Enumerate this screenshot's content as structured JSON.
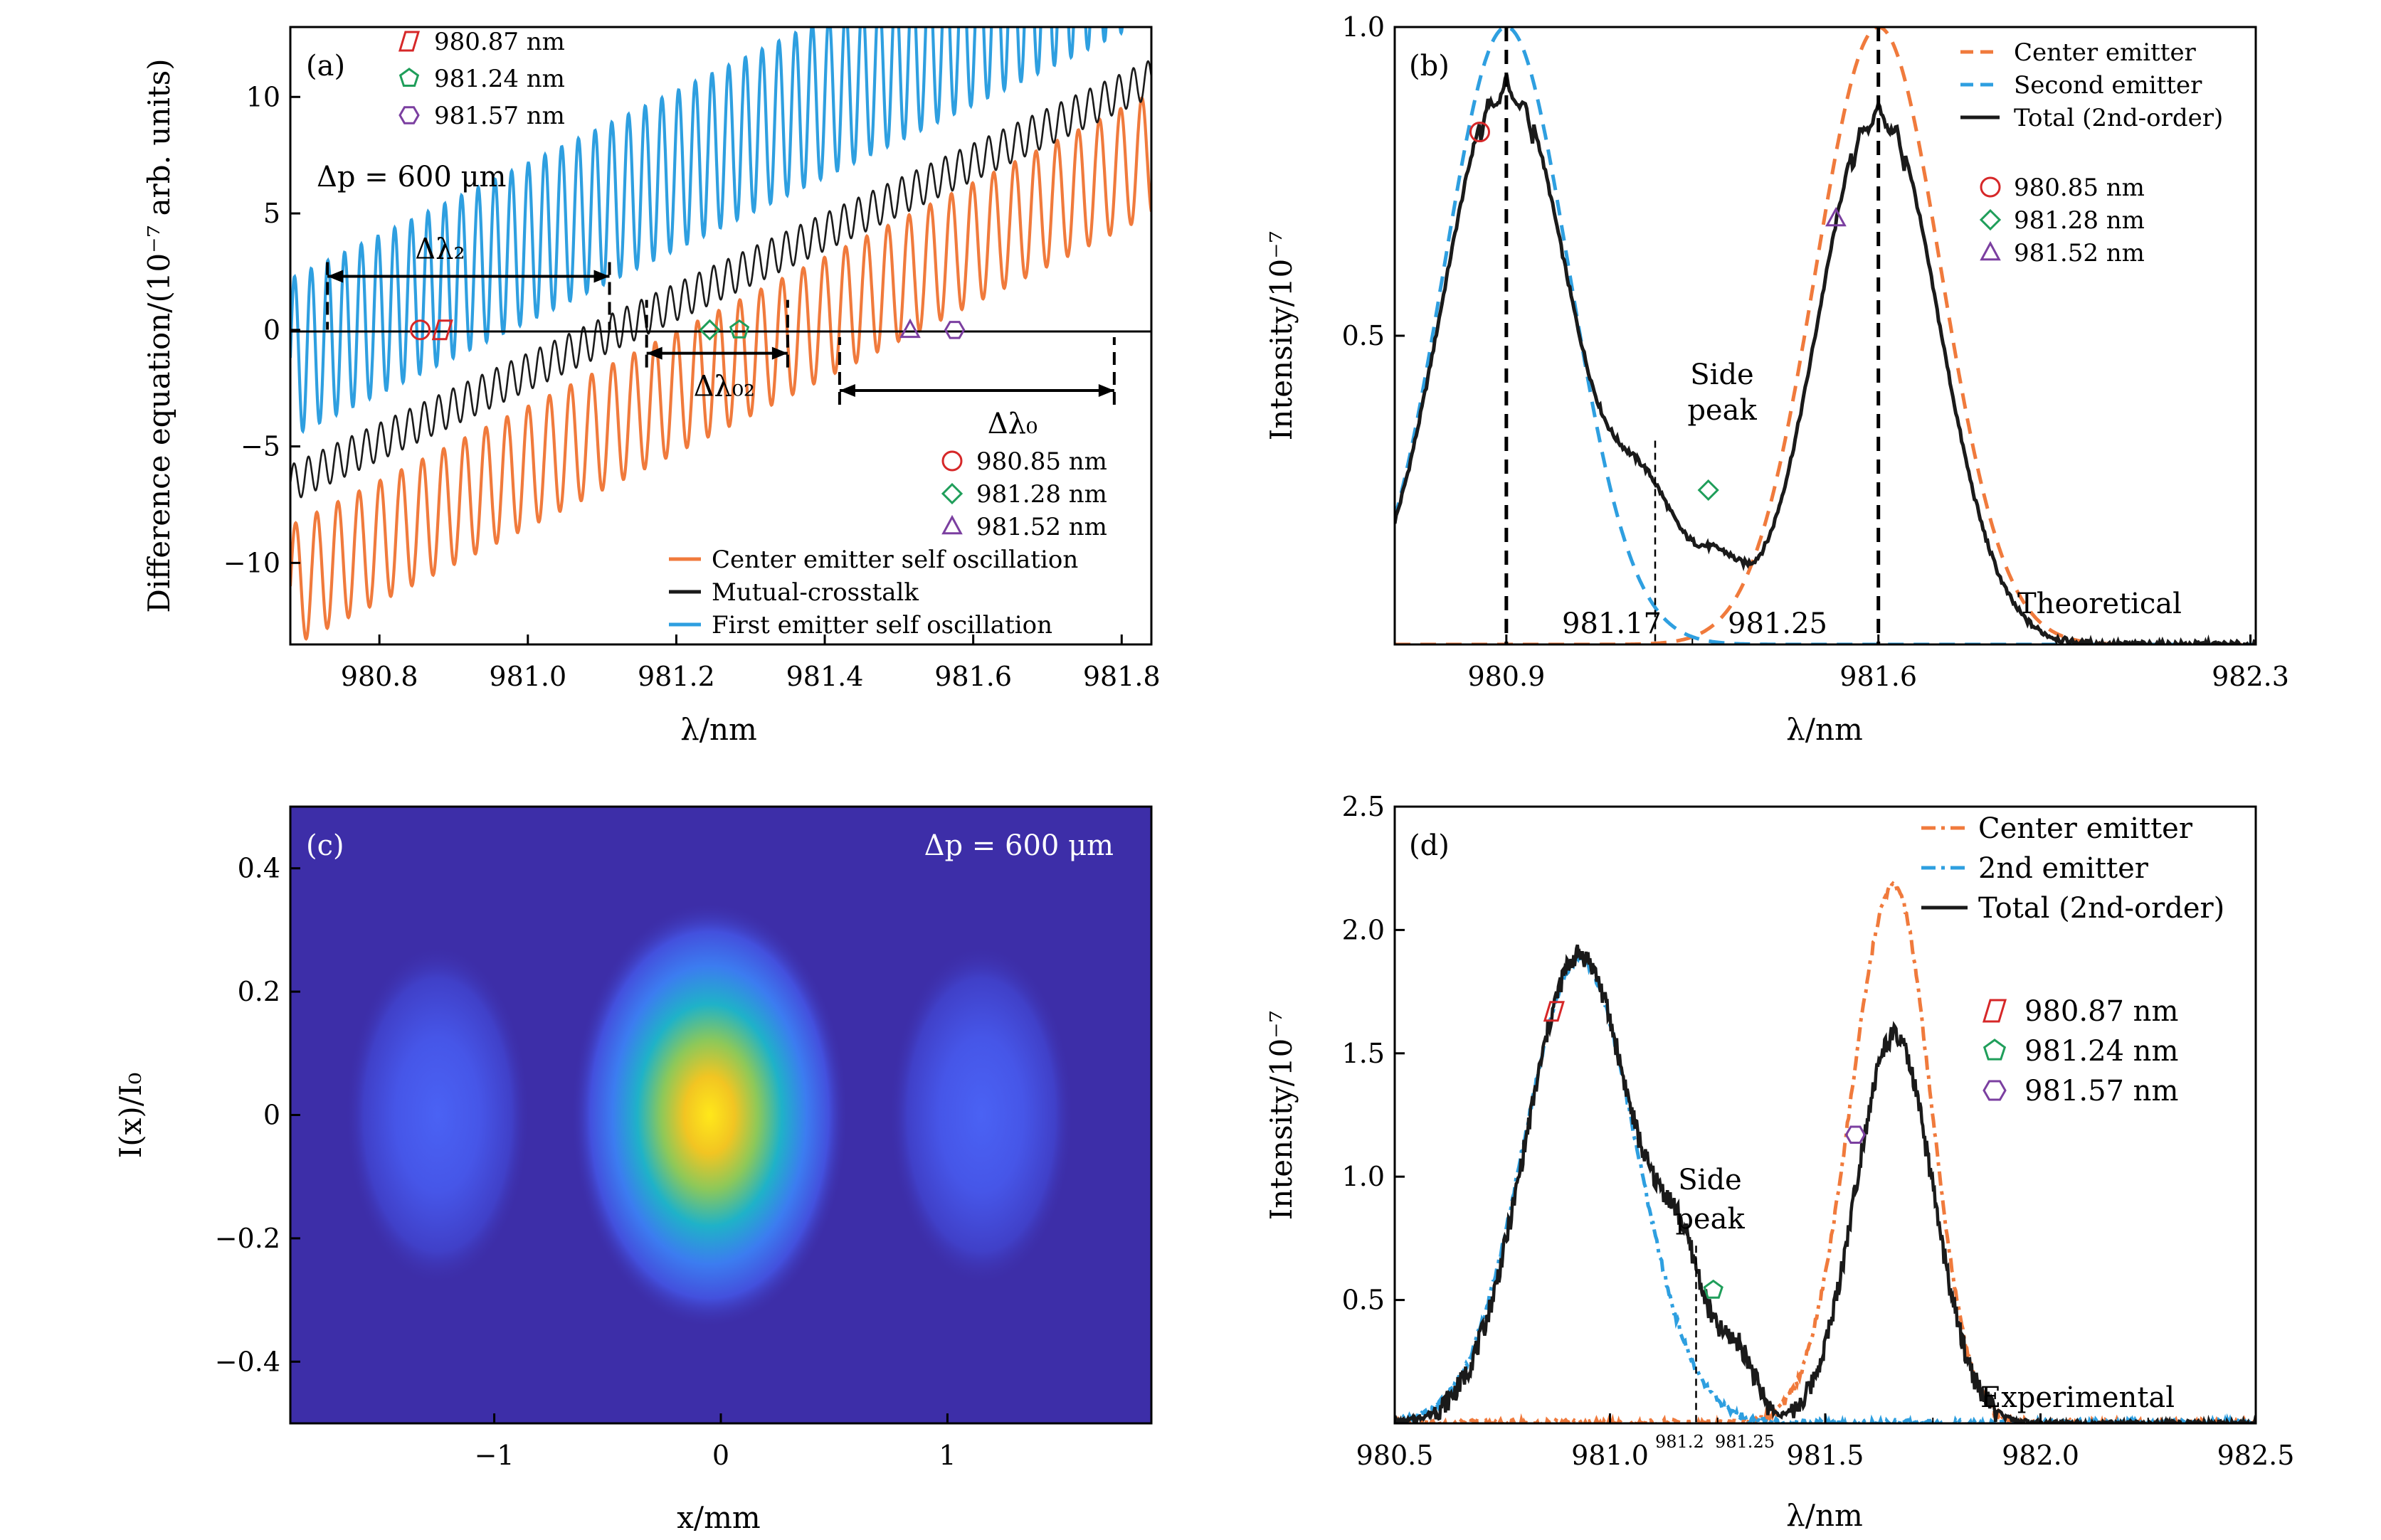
{
  "chart_data": [
    {
      "panel": "(a)",
      "type": "line",
      "xlabel": "λ/nm",
      "ylabel": "Difference equation/(10⁻⁷ arb. units)",
      "xlim": [
        980.68,
        981.84
      ],
      "ylim": [
        -13.5,
        13
      ],
      "xticks": [
        980.8,
        981.0,
        981.2,
        981.4,
        981.6,
        981.8
      ],
      "xticklabels": [
        "980.8",
        "981.0",
        "981.2",
        "981.4",
        "981.6",
        "981.8"
      ],
      "yticks": [
        10,
        5,
        0,
        -5,
        -10
      ],
      "yticklabels": [
        "10",
        "5",
        "0",
        "−5",
        "−10"
      ],
      "annotation": "Δp = 600 μm",
      "intervals": [
        {
          "label": "Δλ₂",
          "start": 980.73,
          "end": 981.11,
          "y": 2.3
        },
        {
          "label": "Δλ₀₂",
          "start": 981.16,
          "end": 981.35,
          "y": -1.0
        },
        {
          "label": "Δλ₀",
          "start": 981.42,
          "end": 981.79,
          "y": -2.6
        }
      ],
      "series": [
        {
          "name": "Center emitter self oscillation",
          "color": "#F07A3C",
          "offset": -11.0,
          "slope": 16.0,
          "amplitude": 2.6,
          "period_nm": 0.0285
        },
        {
          "name": "Mutual-crosstalk",
          "color": "#1A1A1A",
          "offset": -6.6,
          "slope": 15.0,
          "amplitude": 0.8,
          "period_nm": 0.0195
        },
        {
          "name": "First emitter self oscillation",
          "color": "#2E9FE0",
          "offset": -1.2,
          "slope": 15.5,
          "amplitude": 3.4,
          "period_nm": 0.0225
        }
      ],
      "markers_top": [
        {
          "label": "980.87 nm",
          "x": 980.885,
          "shape": "parallelogram",
          "color": "#D62728"
        },
        {
          "label": "981.24 nm",
          "x": 981.285,
          "shape": "pentagon",
          "color": "#1F9E5A"
        },
        {
          "label": "981.57 nm",
          "x": 981.575,
          "shape": "hexagon",
          "color": "#7B3FA0"
        }
      ],
      "markers_bottom": [
        {
          "label": "980.85 nm",
          "x": 980.855,
          "shape": "circle",
          "color": "#D62728"
        },
        {
          "label": "981.28 nm",
          "x": 981.245,
          "shape": "diamond",
          "color": "#1F9E5A"
        },
        {
          "label": "981.52 nm",
          "x": 981.515,
          "shape": "triangle",
          "color": "#7B3FA0"
        }
      ]
    },
    {
      "panel": "(b)",
      "type": "line",
      "xlabel": "λ/nm",
      "ylabel": "Intensity/10⁻⁷",
      "xlim": [
        980.69,
        982.31
      ],
      "ylim": [
        0,
        1.0
      ],
      "xticks": [
        980.9,
        981.6,
        982.3
      ],
      "xticklabels": [
        "980.9",
        "981.6",
        "982.3"
      ],
      "yticks": [
        1.0,
        0.5
      ],
      "yticklabels": [
        "1.0",
        "0.5"
      ],
      "label": "Theoretical",
      "side_peak_label": [
        "Side",
        "peak"
      ],
      "vline_labels": [
        "981.17",
        "981.25"
      ],
      "series": [
        {
          "name": "Center emitter",
          "color": "#F07A3C",
          "style": "dashed",
          "peak_x": 981.6,
          "peak_y": 1.0
        },
        {
          "name": "Second emitter",
          "color": "#2E9FE0",
          "style": "dashed",
          "peak_x": 980.9,
          "peak_y": 1.0
        },
        {
          "name": "Total (2nd-order)",
          "color": "#1A1A1A",
          "style": "solid",
          "peaks": [
            [
              980.9,
              0.92
            ],
            [
              981.6,
              0.88
            ]
          ],
          "side_peak": [
            981.18,
            0.33
          ]
        }
      ],
      "markers": [
        {
          "label": "980.85 nm",
          "shape": "circle",
          "color": "#D62728",
          "x": 980.85,
          "y": 0.83
        },
        {
          "label": "981.28 nm",
          "shape": "diamond",
          "color": "#1F9E5A",
          "x": 981.28,
          "y": 0.25
        },
        {
          "label": "981.52 nm",
          "shape": "triangle",
          "color": "#7B3FA0",
          "x": 981.52,
          "y": 0.69
        }
      ]
    },
    {
      "panel": "(c)",
      "type": "heatmap",
      "xlabel": "x/mm",
      "ylabel": "I(x)/I₀",
      "xlim": [
        -1.9,
        1.9
      ],
      "ylim": [
        -0.5,
        0.5
      ],
      "xticks": [
        -1,
        0,
        1
      ],
      "xticklabels": [
        "−1",
        "0",
        "1"
      ],
      "yticks": [
        0.4,
        0.2,
        0,
        -0.2,
        -0.4
      ],
      "yticklabels": [
        "0.4",
        "0.2",
        "0",
        "−0.2",
        "−0.4"
      ],
      "annotation": "Δp = 600 μm",
      "spots": [
        {
          "x": -1.25,
          "y": 0.0,
          "intensity": 0.25
        },
        {
          "x": -0.05,
          "y": 0.0,
          "intensity": 1.0
        },
        {
          "x": 1.15,
          "y": 0.0,
          "intensity": 0.25
        }
      ]
    },
    {
      "panel": "(d)",
      "type": "line",
      "xlabel": "λ/nm",
      "ylabel": "Intensity/10⁻⁷",
      "xlim": [
        980.5,
        982.5
      ],
      "ylim": [
        0,
        2.5
      ],
      "xticks": [
        980.5,
        981.0,
        981.5,
        982.0,
        982.5
      ],
      "xticklabels": [
        "980.5",
        "981.0",
        "981.5",
        "982.0",
        "982.5"
      ],
      "yticks": [
        2.5,
        2.0,
        1.5,
        1.0,
        0.5
      ],
      "yticklabels": [
        "2.5",
        "2.0",
        "1.5",
        "1.0",
        "0.5"
      ],
      "label": "Experimental",
      "side_peak_label": [
        "Side",
        "peak"
      ],
      "vline_labels": [
        "981.2",
        "981.25"
      ],
      "series": [
        {
          "name": "Center emitter",
          "color": "#F07A3C",
          "style": "dashdot",
          "peak_x": 981.66,
          "peak_y": 2.18
        },
        {
          "name": "2nd emitter",
          "color": "#2E9FE0",
          "style": "dashdot",
          "peak_x": 980.93,
          "peak_y": 1.88
        },
        {
          "name": "Total (2nd-order)",
          "color": "#1A1A1A",
          "style": "solid",
          "peaks": [
            [
              980.93,
              1.9
            ],
            [
              981.66,
              1.57
            ]
          ],
          "side_peak": [
            981.2,
            0.72
          ]
        }
      ],
      "markers": [
        {
          "label": "980.87 nm",
          "shape": "parallelogram",
          "color": "#D62728",
          "x": 980.87,
          "y": 1.67
        },
        {
          "label": "981.24 nm",
          "shape": "pentagon",
          "color": "#1F9E5A",
          "x": 981.24,
          "y": 0.54
        },
        {
          "label": "981.57 nm",
          "shape": "hexagon",
          "color": "#7B3FA0",
          "x": 981.57,
          "y": 1.17
        }
      ]
    }
  ]
}
